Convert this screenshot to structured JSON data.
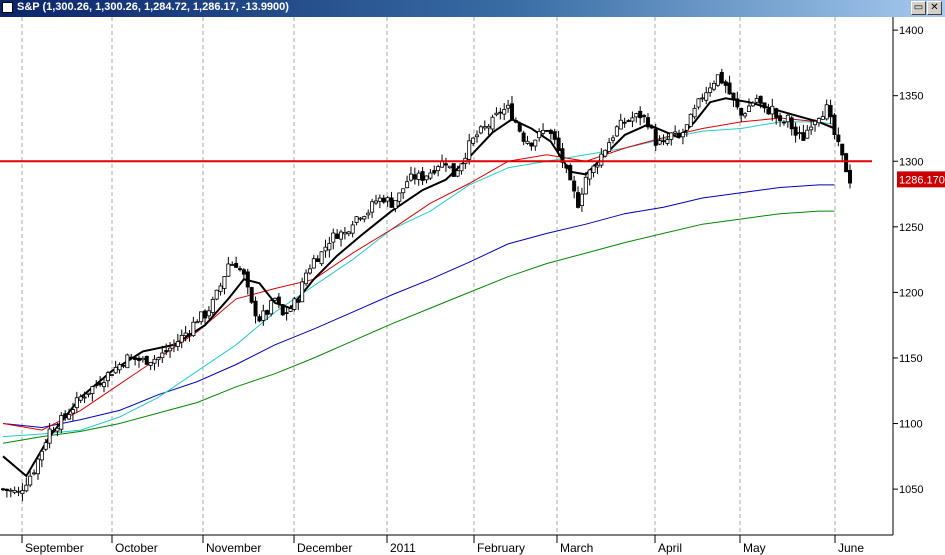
{
  "window": {
    "title": "S&P (1,300.26, 1,300.26, 1,284.72, 1,286.17, -13.9900)",
    "restore_label": "▭",
    "close_label": "✕"
  },
  "chart_data": {
    "type": "candlestick",
    "symbol": "S&P",
    "ohlc_last": {
      "open": 1300.26,
      "high": 1300.26,
      "low": 1284.72,
      "close": 1286.17,
      "change": -13.99
    },
    "last_price_label": "1286.170",
    "y_ticks": [
      "1050",
      "1100",
      "1150",
      "1200",
      "1250",
      "1300",
      "1350",
      "1400"
    ],
    "ylim": [
      1015,
      1410
    ],
    "x_months": [
      "September",
      "October",
      "November",
      "December",
      "2011",
      "February",
      "March",
      "April",
      "May",
      "June"
    ],
    "x_dates": [
      "2010-08-20",
      "2011-06-06"
    ],
    "horizontal_line": {
      "value": 1300,
      "color": "#e00000"
    },
    "colors": {
      "up": "#ffffff",
      "down": "#000000",
      "ma_fast": "#000000",
      "ma_red": "#dd0000",
      "ma_cyan": "#22cccc",
      "ma_blue": "#0000bb",
      "ma_green": "#008800",
      "last_label_bg": "#cc0000"
    },
    "price_path": [
      [
        0,
        1050
      ],
      [
        4,
        1047
      ],
      [
        8,
        1065
      ],
      [
        12,
        1095
      ],
      [
        16,
        1105
      ],
      [
        20,
        1120
      ],
      [
        24,
        1130
      ],
      [
        28,
        1140
      ],
      [
        32,
        1150
      ],
      [
        36,
        1148
      ],
      [
        40,
        1150
      ],
      [
        44,
        1160
      ],
      [
        48,
        1172
      ],
      [
        50,
        1180
      ],
      [
        52,
        1183
      ],
      [
        54,
        1192
      ],
      [
        56,
        1205
      ],
      [
        58,
        1222
      ],
      [
        60,
        1222
      ],
      [
        62,
        1212
      ],
      [
        64,
        1190
      ],
      [
        66,
        1180
      ],
      [
        68,
        1185
      ],
      [
        70,
        1195
      ],
      [
        72,
        1182
      ],
      [
        74,
        1188
      ],
      [
        76,
        1196
      ],
      [
        78,
        1215
      ],
      [
        80,
        1225
      ],
      [
        82,
        1230
      ],
      [
        84,
        1240
      ],
      [
        86,
        1245
      ],
      [
        88,
        1245
      ],
      [
        90,
        1255
      ],
      [
        92,
        1260
      ],
      [
        94,
        1262
      ],
      [
        96,
        1270
      ],
      [
        98,
        1272
      ],
      [
        100,
        1268
      ],
      [
        102,
        1274
      ],
      [
        104,
        1285
      ],
      [
        106,
        1288
      ],
      [
        108,
        1288
      ],
      [
        110,
        1292
      ],
      [
        112,
        1298
      ],
      [
        114,
        1300
      ],
      [
        116,
        1290
      ],
      [
        118,
        1300
      ],
      [
        120,
        1312
      ],
      [
        122,
        1320
      ],
      [
        124,
        1325
      ],
      [
        126,
        1330
      ],
      [
        128,
        1338
      ],
      [
        130,
        1340
      ],
      [
        132,
        1330
      ],
      [
        134,
        1318
      ],
      [
        136,
        1315
      ],
      [
        138,
        1320
      ],
      [
        140,
        1325
      ],
      [
        142,
        1315
      ],
      [
        144,
        1300
      ],
      [
        146,
        1282
      ],
      [
        148,
        1268
      ],
      [
        150,
        1288
      ],
      [
        152,
        1295
      ],
      [
        154,
        1305
      ],
      [
        156,
        1315
      ],
      [
        158,
        1325
      ],
      [
        160,
        1330
      ],
      [
        162,
        1333
      ],
      [
        164,
        1335
      ],
      [
        166,
        1330
      ],
      [
        168,
        1315
      ],
      [
        170,
        1312
      ],
      [
        172,
        1320
      ],
      [
        174,
        1318
      ],
      [
        176,
        1326
      ],
      [
        178,
        1338
      ],
      [
        180,
        1350
      ],
      [
        182,
        1358
      ],
      [
        184,
        1365
      ],
      [
        186,
        1358
      ],
      [
        188,
        1345
      ],
      [
        190,
        1335
      ],
      [
        192,
        1342
      ],
      [
        194,
        1348
      ],
      [
        196,
        1338
      ],
      [
        198,
        1340
      ],
      [
        200,
        1328
      ],
      [
        202,
        1332
      ],
      [
        204,
        1320
      ],
      [
        206,
        1318
      ],
      [
        208,
        1330
      ],
      [
        210,
        1336
      ],
      [
        212,
        1340
      ],
      [
        214,
        1320
      ],
      [
        216,
        1302
      ],
      [
        218,
        1286
      ]
    ],
    "ma_fast": [
      [
        0,
        1075
      ],
      [
        6,
        1060
      ],
      [
        12,
        1090
      ],
      [
        20,
        1120
      ],
      [
        28,
        1140
      ],
      [
        36,
        1155
      ],
      [
        44,
        1160
      ],
      [
        52,
        1175
      ],
      [
        58,
        1195
      ],
      [
        62,
        1210
      ],
      [
        66,
        1207
      ],
      [
        70,
        1192
      ],
      [
        74,
        1188
      ],
      [
        80,
        1210
      ],
      [
        86,
        1228
      ],
      [
        92,
        1243
      ],
      [
        100,
        1262
      ],
      [
        108,
        1278
      ],
      [
        114,
        1286
      ],
      [
        120,
        1303
      ],
      [
        126,
        1322
      ],
      [
        131,
        1332
      ],
      [
        136,
        1325
      ],
      [
        141,
        1315
      ],
      [
        146,
        1292
      ],
      [
        150,
        1290
      ],
      [
        154,
        1302
      ],
      [
        160,
        1320
      ],
      [
        166,
        1328
      ],
      [
        170,
        1323
      ],
      [
        174,
        1318
      ],
      [
        178,
        1330
      ],
      [
        182,
        1345
      ],
      [
        186,
        1348
      ],
      [
        192,
        1345
      ],
      [
        198,
        1340
      ],
      [
        204,
        1335
      ],
      [
        210,
        1330
      ],
      [
        214,
        1325
      ]
    ],
    "ma_red": [
      [
        0,
        1100
      ],
      [
        10,
        1095
      ],
      [
        20,
        1110
      ],
      [
        30,
        1130
      ],
      [
        40,
        1150
      ],
      [
        50,
        1170
      ],
      [
        60,
        1195
      ],
      [
        70,
        1203
      ],
      [
        80,
        1210
      ],
      [
        90,
        1230
      ],
      [
        100,
        1248
      ],
      [
        110,
        1268
      ],
      [
        120,
        1283
      ],
      [
        130,
        1300
      ],
      [
        140,
        1305
      ],
      [
        150,
        1300
      ],
      [
        160,
        1310
      ],
      [
        170,
        1318
      ],
      [
        180,
        1325
      ],
      [
        190,
        1330
      ],
      [
        200,
        1333
      ],
      [
        210,
        1330
      ],
      [
        214,
        1326
      ]
    ],
    "ma_cyan": [
      [
        0,
        1090
      ],
      [
        10,
        1092
      ],
      [
        20,
        1095
      ],
      [
        30,
        1105
      ],
      [
        40,
        1120
      ],
      [
        50,
        1140
      ],
      [
        60,
        1160
      ],
      [
        70,
        1185
      ],
      [
        80,
        1205
      ],
      [
        90,
        1225
      ],
      [
        100,
        1248
      ],
      [
        110,
        1262
      ],
      [
        120,
        1282
      ],
      [
        130,
        1295
      ],
      [
        140,
        1300
      ],
      [
        150,
        1305
      ],
      [
        160,
        1310
      ],
      [
        170,
        1317
      ],
      [
        180,
        1323
      ],
      [
        190,
        1325
      ],
      [
        200,
        1330
      ],
      [
        210,
        1330
      ],
      [
        214,
        1328
      ]
    ],
    "ma_blue": [
      [
        0,
        1100
      ],
      [
        10,
        1097
      ],
      [
        20,
        1103
      ],
      [
        30,
        1110
      ],
      [
        40,
        1122
      ],
      [
        50,
        1132
      ],
      [
        60,
        1145
      ],
      [
        70,
        1160
      ],
      [
        80,
        1172
      ],
      [
        90,
        1185
      ],
      [
        100,
        1198
      ],
      [
        110,
        1210
      ],
      [
        120,
        1223
      ],
      [
        130,
        1237
      ],
      [
        140,
        1245
      ],
      [
        150,
        1252
      ],
      [
        160,
        1260
      ],
      [
        170,
        1265
      ],
      [
        180,
        1272
      ],
      [
        190,
        1276
      ],
      [
        200,
        1280
      ],
      [
        210,
        1282
      ],
      [
        214,
        1282
      ]
    ],
    "ma_green": [
      [
        0,
        1085
      ],
      [
        10,
        1090
      ],
      [
        20,
        1094
      ],
      [
        30,
        1100
      ],
      [
        40,
        1108
      ],
      [
        50,
        1116
      ],
      [
        60,
        1128
      ],
      [
        70,
        1138
      ],
      [
        80,
        1150
      ],
      [
        90,
        1163
      ],
      [
        100,
        1176
      ],
      [
        110,
        1188
      ],
      [
        120,
        1200
      ],
      [
        130,
        1212
      ],
      [
        140,
        1222
      ],
      [
        150,
        1230
      ],
      [
        160,
        1238
      ],
      [
        170,
        1245
      ],
      [
        180,
        1252
      ],
      [
        190,
        1256
      ],
      [
        200,
        1260
      ],
      [
        210,
        1262
      ],
      [
        214,
        1262
      ]
    ]
  }
}
